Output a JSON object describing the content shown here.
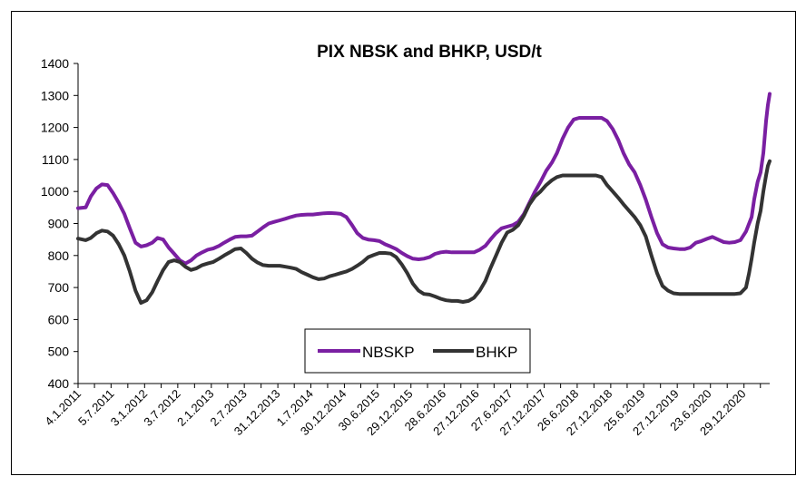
{
  "chart_data": {
    "type": "line",
    "title": "PIX NBSK and BHKP, USD/t",
    "xlabel": "",
    "ylabel": "",
    "ylim": [
      400,
      1400
    ],
    "yticks": [
      400,
      500,
      600,
      700,
      800,
      900,
      1000,
      1100,
      1200,
      1300,
      1400
    ],
    "xlim": [
      "2011-01-04",
      "2021-05-25"
    ],
    "xtick_labels": [
      "4.1.2011",
      "5.7.2011",
      "3.1.2012",
      "3.7.2012",
      "2.1.2013",
      "2.7.2013",
      "31.12.2013",
      "1.7.2014",
      "30.12.2014",
      "30.6.2015",
      "29.12.2015",
      "28.6.2016",
      "27.12.2016",
      "27.6.2017",
      "27.12.2017",
      "26.6.2018",
      "27.12.2018",
      "25.6.2019",
      "27.12.2019",
      "23.6.2020",
      "29.12.2020"
    ],
    "xtick_dates": [
      "2011-01-04",
      "2011-07-05",
      "2012-01-03",
      "2012-07-03",
      "2013-01-02",
      "2013-07-02",
      "2013-12-31",
      "2014-07-01",
      "2014-12-30",
      "2015-06-30",
      "2015-12-29",
      "2016-06-28",
      "2016-12-27",
      "2017-06-27",
      "2017-12-27",
      "2018-06-26",
      "2018-12-27",
      "2019-06-25",
      "2019-12-27",
      "2020-06-23",
      "2020-12-29"
    ],
    "grid": false,
    "legend": "bottom-center",
    "series": [
      {
        "name": "NBSKP",
        "color": "#7a1fa2",
        "points": [
          [
            "2011-01-04",
            948
          ],
          [
            "2011-02-15",
            950
          ],
          [
            "2011-03-15",
            985
          ],
          [
            "2011-04-15",
            1010
          ],
          [
            "2011-05-15",
            1022
          ],
          [
            "2011-06-15",
            1020
          ],
          [
            "2011-07-15",
            995
          ],
          [
            "2011-08-15",
            965
          ],
          [
            "2011-09-15",
            930
          ],
          [
            "2011-10-15",
            885
          ],
          [
            "2011-11-15",
            840
          ],
          [
            "2011-12-15",
            828
          ],
          [
            "2012-01-15",
            832
          ],
          [
            "2012-02-15",
            840
          ],
          [
            "2012-03-15",
            855
          ],
          [
            "2012-04-15",
            850
          ],
          [
            "2012-05-15",
            825
          ],
          [
            "2012-06-15",
            805
          ],
          [
            "2012-07-15",
            785
          ],
          [
            "2012-08-15",
            775
          ],
          [
            "2012-09-15",
            785
          ],
          [
            "2012-10-15",
            800
          ],
          [
            "2012-11-15",
            810
          ],
          [
            "2012-12-15",
            818
          ],
          [
            "2013-01-15",
            822
          ],
          [
            "2013-02-15",
            830
          ],
          [
            "2013-03-15",
            840
          ],
          [
            "2013-04-15",
            850
          ],
          [
            "2013-05-15",
            858
          ],
          [
            "2013-06-15",
            860
          ],
          [
            "2013-07-15",
            860
          ],
          [
            "2013-08-15",
            862
          ],
          [
            "2013-09-15",
            875
          ],
          [
            "2013-10-15",
            888
          ],
          [
            "2013-11-15",
            900
          ],
          [
            "2013-12-15",
            905
          ],
          [
            "2014-01-15",
            910
          ],
          [
            "2014-02-15",
            915
          ],
          [
            "2014-03-15",
            920
          ],
          [
            "2014-04-15",
            925
          ],
          [
            "2014-05-15",
            927
          ],
          [
            "2014-06-15",
            928
          ],
          [
            "2014-07-15",
            928
          ],
          [
            "2014-08-15",
            930
          ],
          [
            "2014-09-15",
            932
          ],
          [
            "2014-10-15",
            933
          ],
          [
            "2014-11-15",
            932
          ],
          [
            "2014-12-15",
            930
          ],
          [
            "2015-01-15",
            920
          ],
          [
            "2015-02-15",
            895
          ],
          [
            "2015-03-15",
            870
          ],
          [
            "2015-04-15",
            855
          ],
          [
            "2015-05-15",
            850
          ],
          [
            "2015-06-15",
            848
          ],
          [
            "2015-07-15",
            845
          ],
          [
            "2015-08-15",
            835
          ],
          [
            "2015-09-15",
            828
          ],
          [
            "2015-10-15",
            820
          ],
          [
            "2015-11-15",
            808
          ],
          [
            "2015-12-15",
            798
          ],
          [
            "2016-01-15",
            790
          ],
          [
            "2016-02-15",
            788
          ],
          [
            "2016-03-15",
            790
          ],
          [
            "2016-04-15",
            795
          ],
          [
            "2016-05-15",
            805
          ],
          [
            "2016-06-15",
            810
          ],
          [
            "2016-07-15",
            812
          ],
          [
            "2016-08-15",
            810
          ],
          [
            "2016-09-15",
            810
          ],
          [
            "2016-10-15",
            810
          ],
          [
            "2016-11-15",
            810
          ],
          [
            "2016-12-15",
            810
          ],
          [
            "2017-01-15",
            818
          ],
          [
            "2017-02-15",
            830
          ],
          [
            "2017-03-15",
            850
          ],
          [
            "2017-04-15",
            870
          ],
          [
            "2017-05-15",
            885
          ],
          [
            "2017-06-15",
            890
          ],
          [
            "2017-07-15",
            895
          ],
          [
            "2017-08-15",
            905
          ],
          [
            "2017-09-15",
            930
          ],
          [
            "2017-10-15",
            965
          ],
          [
            "2017-11-15",
            1000
          ],
          [
            "2017-12-15",
            1030
          ],
          [
            "2018-01-15",
            1065
          ],
          [
            "2018-02-15",
            1090
          ],
          [
            "2018-03-15",
            1120
          ],
          [
            "2018-04-15",
            1165
          ],
          [
            "2018-05-15",
            1200
          ],
          [
            "2018-06-15",
            1225
          ],
          [
            "2018-07-15",
            1230
          ],
          [
            "2018-08-15",
            1230
          ],
          [
            "2018-09-15",
            1230
          ],
          [
            "2018-10-15",
            1230
          ],
          [
            "2018-11-15",
            1230
          ],
          [
            "2018-12-15",
            1220
          ],
          [
            "2019-01-15",
            1195
          ],
          [
            "2019-02-15",
            1160
          ],
          [
            "2019-03-15",
            1120
          ],
          [
            "2019-04-15",
            1085
          ],
          [
            "2019-05-15",
            1060
          ],
          [
            "2019-06-15",
            1020
          ],
          [
            "2019-07-15",
            975
          ],
          [
            "2019-08-15",
            920
          ],
          [
            "2019-09-15",
            870
          ],
          [
            "2019-10-15",
            835
          ],
          [
            "2019-11-15",
            825
          ],
          [
            "2019-12-15",
            822
          ],
          [
            "2020-01-15",
            820
          ],
          [
            "2020-02-15",
            820
          ],
          [
            "2020-03-15",
            825
          ],
          [
            "2020-04-15",
            840
          ],
          [
            "2020-05-15",
            845
          ],
          [
            "2020-06-15",
            852
          ],
          [
            "2020-07-15",
            858
          ],
          [
            "2020-08-15",
            850
          ],
          [
            "2020-09-15",
            842
          ],
          [
            "2020-10-15",
            840
          ],
          [
            "2020-11-15",
            842
          ],
          [
            "2020-12-15",
            848
          ],
          [
            "2021-01-15",
            875
          ],
          [
            "2021-02-15",
            920
          ],
          [
            "2021-03-01",
            975
          ],
          [
            "2021-03-20",
            1030
          ],
          [
            "2021-04-05",
            1060
          ],
          [
            "2021-04-20",
            1120
          ],
          [
            "2021-05-05",
            1220
          ],
          [
            "2021-05-15",
            1270
          ],
          [
            "2021-05-25",
            1305
          ]
        ]
      },
      {
        "name": "BHKP",
        "color": "#333333",
        "points": [
          [
            "2011-01-04",
            853
          ],
          [
            "2011-02-15",
            848
          ],
          [
            "2011-03-15",
            855
          ],
          [
            "2011-04-15",
            870
          ],
          [
            "2011-05-15",
            878
          ],
          [
            "2011-06-15",
            875
          ],
          [
            "2011-07-15",
            862
          ],
          [
            "2011-08-15",
            835
          ],
          [
            "2011-09-15",
            800
          ],
          [
            "2011-10-15",
            750
          ],
          [
            "2011-11-15",
            690
          ],
          [
            "2011-12-15",
            652
          ],
          [
            "2012-01-15",
            660
          ],
          [
            "2012-02-15",
            685
          ],
          [
            "2012-03-15",
            720
          ],
          [
            "2012-04-15",
            755
          ],
          [
            "2012-05-15",
            780
          ],
          [
            "2012-06-15",
            785
          ],
          [
            "2012-07-15",
            780
          ],
          [
            "2012-08-15",
            765
          ],
          [
            "2012-09-15",
            755
          ],
          [
            "2012-10-15",
            760
          ],
          [
            "2012-11-15",
            770
          ],
          [
            "2012-12-15",
            775
          ],
          [
            "2013-01-15",
            780
          ],
          [
            "2013-02-15",
            790
          ],
          [
            "2013-03-15",
            800
          ],
          [
            "2013-04-15",
            810
          ],
          [
            "2013-05-15",
            820
          ],
          [
            "2013-06-15",
            822
          ],
          [
            "2013-07-15",
            808
          ],
          [
            "2013-08-15",
            790
          ],
          [
            "2013-09-15",
            778
          ],
          [
            "2013-10-15",
            770
          ],
          [
            "2013-11-15",
            768
          ],
          [
            "2013-12-15",
            768
          ],
          [
            "2014-01-15",
            768
          ],
          [
            "2014-02-15",
            765
          ],
          [
            "2014-03-15",
            762
          ],
          [
            "2014-04-15",
            758
          ],
          [
            "2014-05-15",
            748
          ],
          [
            "2014-06-15",
            740
          ],
          [
            "2014-07-15",
            732
          ],
          [
            "2014-08-15",
            726
          ],
          [
            "2014-09-15",
            728
          ],
          [
            "2014-10-15",
            735
          ],
          [
            "2014-11-15",
            740
          ],
          [
            "2014-12-15",
            745
          ],
          [
            "2015-01-15",
            750
          ],
          [
            "2015-02-15",
            758
          ],
          [
            "2015-03-15",
            768
          ],
          [
            "2015-04-15",
            780
          ],
          [
            "2015-05-15",
            795
          ],
          [
            "2015-06-15",
            802
          ],
          [
            "2015-07-15",
            808
          ],
          [
            "2015-08-15",
            808
          ],
          [
            "2015-09-15",
            806
          ],
          [
            "2015-10-15",
            795
          ],
          [
            "2015-11-15",
            772
          ],
          [
            "2015-12-15",
            745
          ],
          [
            "2016-01-15",
            712
          ],
          [
            "2016-02-15",
            690
          ],
          [
            "2016-03-15",
            680
          ],
          [
            "2016-04-15",
            678
          ],
          [
            "2016-05-15",
            672
          ],
          [
            "2016-06-15",
            665
          ],
          [
            "2016-07-15",
            660
          ],
          [
            "2016-08-15",
            658
          ],
          [
            "2016-09-15",
            658
          ],
          [
            "2016-10-15",
            655
          ],
          [
            "2016-11-15",
            658
          ],
          [
            "2016-12-15",
            668
          ],
          [
            "2017-01-15",
            690
          ],
          [
            "2017-02-15",
            720
          ],
          [
            "2017-03-15",
            760
          ],
          [
            "2017-04-15",
            800
          ],
          [
            "2017-05-15",
            840
          ],
          [
            "2017-06-15",
            872
          ],
          [
            "2017-07-15",
            880
          ],
          [
            "2017-08-15",
            895
          ],
          [
            "2017-09-15",
            925
          ],
          [
            "2017-10-15",
            960
          ],
          [
            "2017-11-15",
            985
          ],
          [
            "2017-12-15",
            1000
          ],
          [
            "2018-01-15",
            1020
          ],
          [
            "2018-02-15",
            1035
          ],
          [
            "2018-03-15",
            1045
          ],
          [
            "2018-04-15",
            1050
          ],
          [
            "2018-05-15",
            1050
          ],
          [
            "2018-06-15",
            1050
          ],
          [
            "2018-07-15",
            1050
          ],
          [
            "2018-08-15",
            1050
          ],
          [
            "2018-09-15",
            1050
          ],
          [
            "2018-10-15",
            1050
          ],
          [
            "2018-11-15",
            1045
          ],
          [
            "2018-12-15",
            1020
          ],
          [
            "2019-01-15",
            1000
          ],
          [
            "2019-02-15",
            980
          ],
          [
            "2019-03-15",
            960
          ],
          [
            "2019-04-15",
            940
          ],
          [
            "2019-05-15",
            920
          ],
          [
            "2019-06-15",
            895
          ],
          [
            "2019-07-15",
            860
          ],
          [
            "2019-08-15",
            800
          ],
          [
            "2019-09-15",
            745
          ],
          [
            "2019-10-15",
            705
          ],
          [
            "2019-11-15",
            690
          ],
          [
            "2019-12-15",
            682
          ],
          [
            "2020-01-15",
            680
          ],
          [
            "2020-02-15",
            680
          ],
          [
            "2020-03-15",
            680
          ],
          [
            "2020-04-15",
            680
          ],
          [
            "2020-05-15",
            680
          ],
          [
            "2020-06-15",
            680
          ],
          [
            "2020-07-15",
            680
          ],
          [
            "2020-08-15",
            680
          ],
          [
            "2020-09-15",
            680
          ],
          [
            "2020-10-15",
            680
          ],
          [
            "2020-11-15",
            680
          ],
          [
            "2020-12-15",
            682
          ],
          [
            "2021-01-15",
            700
          ],
          [
            "2021-02-01",
            745
          ],
          [
            "2021-02-15",
            790
          ],
          [
            "2021-03-01",
            840
          ],
          [
            "2021-03-20",
            900
          ],
          [
            "2021-04-05",
            940
          ],
          [
            "2021-04-20",
            1000
          ],
          [
            "2021-05-05",
            1050
          ],
          [
            "2021-05-15",
            1080
          ],
          [
            "2021-05-25",
            1095
          ]
        ]
      }
    ]
  }
}
